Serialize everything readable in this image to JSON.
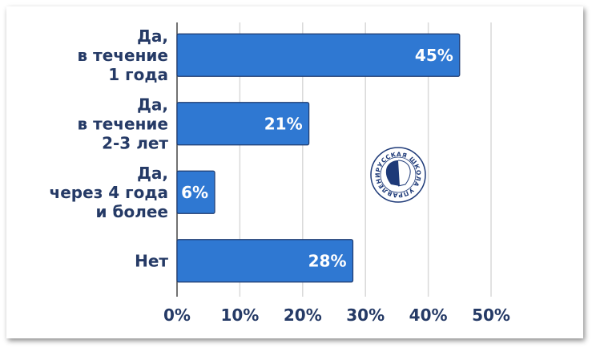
{
  "chart_data": {
    "type": "bar",
    "orientation": "horizontal",
    "categories": [
      [
        "Да,",
        "в течение",
        "1 года"
      ],
      [
        "Да,",
        "в течение",
        "2-3 лет"
      ],
      [
        "Да,",
        "через 4 года",
        "и более"
      ],
      [
        "Нет"
      ]
    ],
    "values": [
      45,
      21,
      6,
      28
    ],
    "data_labels": [
      "45%",
      "21%",
      "6%",
      "28%"
    ],
    "xlim": [
      0,
      50
    ],
    "xticks": [
      0,
      10,
      20,
      30,
      40,
      50
    ],
    "xtick_labels": [
      "0%",
      "10%",
      "20%",
      "30%",
      "40%",
      "50%"
    ],
    "grid": "vertical",
    "colors": {
      "bar": "#2f78d2",
      "bar_border": "#1f3a6e",
      "text": "#253a66",
      "grid": "#d9d9d9"
    }
  },
  "logo": {
    "text": "РУССКАЯ ШКОЛА УПРАВЛЕНИЯ",
    "color": "#1e3a78"
  }
}
